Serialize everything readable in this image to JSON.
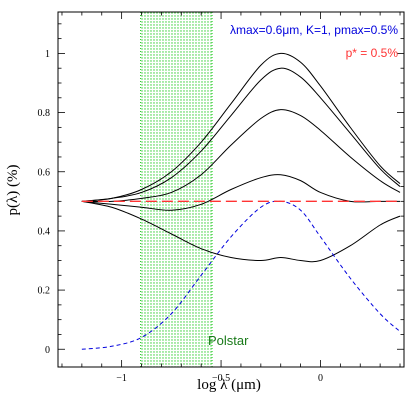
{
  "chart_data": {
    "type": "line",
    "xlabel": "log λ (μm)",
    "ylabel": "p(λ)  (%)",
    "xlim": [
      -1.32,
      0.42
    ],
    "ylim": [
      -0.06,
      1.14
    ],
    "grid": false,
    "xticks": [
      {
        "value": -1,
        "label": "−1"
      },
      {
        "value": -0.5,
        "label": "−0.5"
      },
      {
        "value": 0,
        "label": "0"
      }
    ],
    "yticks": [
      {
        "value": 0,
        "label": "0"
      },
      {
        "value": 0.2,
        "label": "0.2"
      },
      {
        "value": 0.4,
        "label": "0.4"
      },
      {
        "value": 0.6,
        "label": "0.6"
      },
      {
        "value": 0.8,
        "label": "0.8"
      },
      {
        "value": 1,
        "label": "1"
      }
    ],
    "band": {
      "x0": -0.905,
      "x1": -0.545,
      "label": "Polstar",
      "color": "#2ecc2e"
    },
    "reference_line": {
      "y": 0.5,
      "label": "p* = 0.5%",
      "color": "#ff3333"
    },
    "annotation": {
      "text": "λmax=0.6μm, K=1, pmax=0.5%",
      "color": "#0000dd"
    },
    "series": [
      {
        "style": "solid",
        "color": "#000000",
        "x": [
          -1.2,
          -1.05,
          -0.9,
          -0.75,
          -0.6,
          -0.45,
          -0.3,
          -0.2,
          -0.1,
          0,
          0.15,
          0.3,
          0.4
        ],
        "y": [
          0.5,
          0.51,
          0.54,
          0.6,
          0.7,
          0.83,
          0.96,
          1.0,
          0.97,
          0.89,
          0.75,
          0.62,
          0.56
        ]
      },
      {
        "style": "solid",
        "color": "#000000",
        "x": [
          -1.2,
          -1.05,
          -0.9,
          -0.75,
          -0.6,
          -0.45,
          -0.3,
          -0.2,
          -0.1,
          0,
          0.15,
          0.3,
          0.4
        ],
        "y": [
          0.5,
          0.51,
          0.53,
          0.58,
          0.67,
          0.79,
          0.91,
          0.95,
          0.92,
          0.85,
          0.73,
          0.61,
          0.55
        ]
      },
      {
        "style": "solid",
        "color": "#000000",
        "x": [
          -1.2,
          -1.05,
          -0.9,
          -0.75,
          -0.6,
          -0.45,
          -0.3,
          -0.2,
          -0.1,
          0,
          0.15,
          0.3,
          0.4
        ],
        "y": [
          0.5,
          0.5,
          0.51,
          0.53,
          0.59,
          0.69,
          0.78,
          0.81,
          0.79,
          0.74,
          0.65,
          0.57,
          0.53
        ]
      },
      {
        "style": "solid",
        "color": "#000000",
        "x": [
          -1.2,
          -1.05,
          -0.9,
          -0.75,
          -0.6,
          -0.45,
          -0.3,
          -0.2,
          -0.1,
          0,
          0.15,
          0.3,
          0.4
        ],
        "y": [
          0.5,
          0.49,
          0.48,
          0.47,
          0.49,
          0.54,
          0.58,
          0.59,
          0.57,
          0.53,
          0.5,
          0.5,
          0.5
        ]
      },
      {
        "style": "solid",
        "color": "#000000",
        "x": [
          -1.2,
          -1.05,
          -0.9,
          -0.75,
          -0.6,
          -0.45,
          -0.3,
          -0.2,
          -0.1,
          0,
          0.15,
          0.3,
          0.4
        ],
        "y": [
          0.5,
          0.48,
          0.44,
          0.39,
          0.34,
          0.31,
          0.3,
          0.31,
          0.3,
          0.3,
          0.35,
          0.42,
          0.45
        ]
      },
      {
        "style": "dashed",
        "color": "#0000dd",
        "x": [
          -1.2,
          -1.05,
          -0.9,
          -0.75,
          -0.6,
          -0.45,
          -0.3,
          -0.2,
          -0.1,
          0,
          0.15,
          0.3,
          0.4
        ],
        "y": [
          0.0,
          0.01,
          0.04,
          0.12,
          0.25,
          0.38,
          0.48,
          0.5,
          0.47,
          0.38,
          0.24,
          0.12,
          0.06
        ]
      }
    ]
  }
}
